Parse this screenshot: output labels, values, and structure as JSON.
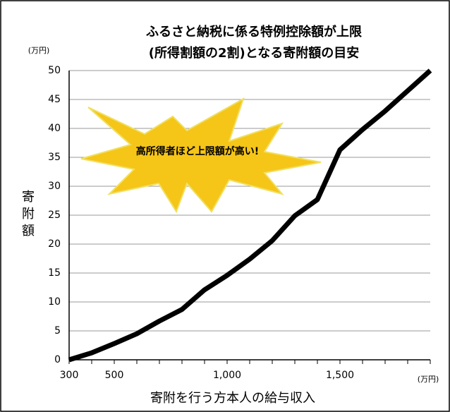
{
  "chart_data": {
    "type": "line",
    "title": [
      "ふるさと納税に係る特例控除額が上限",
      "(所得割額の2割)となる寄附額の目安"
    ],
    "y_unit": "(万円)",
    "x_unit": "(万円)",
    "y_label": "寄附額",
    "x_label": "寄附を行う方本人の給与収入",
    "annotation": "高所得者ほど上限額が高い!",
    "categories": [
      "300",
      null,
      "500",
      null,
      null,
      null,
      null,
      "1,000",
      null,
      null,
      null,
      null,
      "1,500",
      null,
      null,
      null,
      null
    ],
    "series": [
      {
        "name": "寄附額",
        "color": "#000000",
        "values": [
          0,
          1.2,
          2.8,
          4.5,
          6.7,
          8.7,
          12.1,
          14.6,
          17.4,
          20.6,
          24.9,
          27.7,
          36.3,
          39.8,
          43.0,
          46.5,
          50
        ]
      }
    ],
    "ylim": [
      0,
      50
    ],
    "yticks": [
      0,
      5,
      10,
      15,
      20,
      25,
      30,
      35,
      40,
      45,
      50
    ],
    "grid": true
  }
}
